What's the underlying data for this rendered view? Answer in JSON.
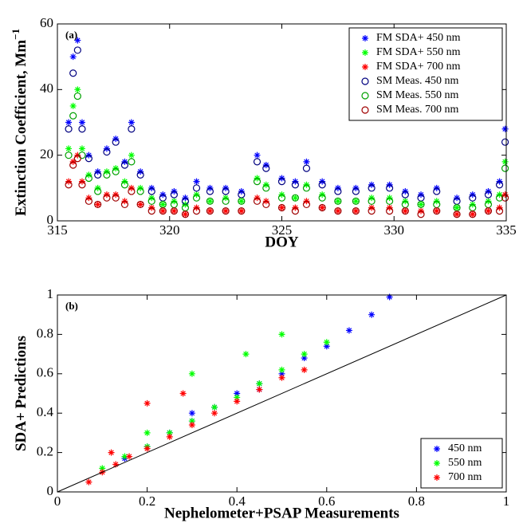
{
  "chart_data": [
    {
      "type": "scatter",
      "annotation": "(a)",
      "xlabel": "DOY",
      "ylabel": "Extinction Coefficient, Mm",
      "ylabel_superscript": "−1",
      "xlim": [
        315,
        335
      ],
      "xticks": [
        315,
        320,
        325,
        330,
        335
      ],
      "ylim": [
        0,
        60
      ],
      "yticks": [
        0,
        20,
        40,
        60
      ],
      "legend": "upper right",
      "x": [
        315.5,
        315.7,
        315.9,
        316.1,
        316.4,
        316.8,
        317.2,
        317.6,
        318.0,
        318.3,
        318.7,
        319.2,
        319.7,
        320.2,
        320.7,
        321.2,
        321.8,
        322.5,
        323.2,
        323.9,
        324.3,
        325.0,
        325.6,
        326.1,
        326.8,
        327.5,
        328.3,
        329.0,
        329.8,
        330.5,
        331.2,
        331.9,
        332.8,
        333.5,
        334.2,
        334.7,
        334.95
      ],
      "series": [
        {
          "name": "FM SDA+ 450 nm",
          "color": "#0000ff",
          "marker": "*",
          "values": [
            30,
            50,
            55,
            30,
            20,
            15,
            22,
            25,
            18,
            30,
            15,
            10,
            8,
            9,
            7,
            12,
            10,
            10,
            9,
            20,
            17,
            13,
            12,
            18,
            12,
            10,
            10,
            11,
            11,
            9,
            8,
            10,
            7,
            8,
            9,
            12,
            28
          ]
        },
        {
          "name": "FM SDA+ 550 nm",
          "color": "#00ff00",
          "marker": "*",
          "values": [
            22,
            35,
            40,
            22,
            14,
            10,
            15,
            16,
            12,
            20,
            10,
            7,
            5,
            6,
            5,
            8,
            6,
            7,
            6,
            13,
            11,
            8,
            7,
            11,
            8,
            6,
            6,
            7,
            7,
            6,
            5,
            6,
            4,
            5,
            6,
            8,
            18
          ]
        },
        {
          "name": "FM SDA+ 700 nm",
          "color": "#ff0000",
          "marker": "*",
          "values": [
            12,
            18,
            20,
            12,
            7,
            5,
            8,
            8,
            6,
            10,
            5,
            4,
            3,
            3,
            2,
            4,
            3,
            3,
            3,
            7,
            6,
            4,
            4,
            6,
            4,
            3,
            3,
            4,
            4,
            3,
            3,
            3,
            2,
            2,
            3,
            4,
            8
          ]
        },
        {
          "name": "SM Meas. 450 nm",
          "color": "#000080",
          "marker": "o",
          "values": [
            28,
            45,
            52,
            28,
            19,
            14,
            21,
            24,
            17,
            28,
            14,
            9,
            7,
            8,
            6,
            10,
            9,
            9,
            8,
            18,
            16,
            12,
            11,
            16,
            11,
            9,
            9,
            10,
            10,
            8,
            7,
            9,
            6,
            7,
            8,
            11,
            24
          ]
        },
        {
          "name": "SM Meas. 550 nm",
          "color": "#00a000",
          "marker": "o",
          "values": [
            20,
            32,
            38,
            20,
            13,
            9,
            14,
            15,
            11,
            18,
            9,
            6,
            5,
            5,
            4,
            7,
            6,
            6,
            6,
            12,
            10,
            7,
            7,
            10,
            7,
            6,
            6,
            6,
            6,
            5,
            5,
            5,
            4,
            4,
            5,
            7,
            16
          ]
        },
        {
          "name": "SM Meas. 700 nm",
          "color": "#a00000",
          "marker": "o",
          "values": [
            11,
            17,
            19,
            11,
            6,
            5,
            7,
            7,
            5,
            9,
            5,
            3,
            3,
            3,
            2,
            3,
            3,
            3,
            3,
            6,
            5,
            4,
            3,
            5,
            4,
            3,
            3,
            3,
            3,
            3,
            2,
            3,
            2,
            2,
            3,
            3,
            7
          ]
        }
      ]
    },
    {
      "type": "scatter",
      "annotation": "(b)",
      "xlabel": "Nephelometer+PSAP Measurements",
      "ylabel": "SDA+ Predictions",
      "xlim": [
        0,
        1
      ],
      "xticks": [
        0,
        0.2,
        0.4,
        0.6,
        0.8,
        1
      ],
      "ylim": [
        0,
        1
      ],
      "yticks": [
        0,
        0.2,
        0.4,
        0.6,
        0.8,
        1
      ],
      "legend": "lower right",
      "series": [
        {
          "name": "450 nm",
          "color": "#0000ff",
          "marker": "*",
          "x": [
            0.15,
            0.2,
            0.25,
            0.3,
            0.35,
            0.4,
            0.45,
            0.5,
            0.55,
            0.6,
            0.65,
            0.7,
            0.74,
            0.3,
            0.45
          ],
          "values": [
            0.17,
            0.23,
            0.3,
            0.36,
            0.43,
            0.5,
            0.55,
            0.6,
            0.68,
            0.74,
            0.82,
            0.9,
            0.99,
            0.4,
            0.52
          ]
        },
        {
          "name": "550 nm",
          "color": "#00ff00",
          "marker": "*",
          "x": [
            0.1,
            0.15,
            0.2,
            0.25,
            0.3,
            0.35,
            0.4,
            0.45,
            0.5,
            0.55,
            0.6,
            0.3,
            0.42,
            0.5,
            0.2
          ],
          "values": [
            0.12,
            0.18,
            0.23,
            0.3,
            0.36,
            0.43,
            0.48,
            0.55,
            0.62,
            0.7,
            0.76,
            0.6,
            0.7,
            0.8,
            0.3
          ]
        },
        {
          "name": "700 nm",
          "color": "#ff0000",
          "marker": "*",
          "x": [
            0.07,
            0.1,
            0.13,
            0.16,
            0.2,
            0.25,
            0.3,
            0.35,
            0.4,
            0.45,
            0.5,
            0.2,
            0.28,
            0.55,
            0.12
          ],
          "values": [
            0.05,
            0.1,
            0.14,
            0.18,
            0.22,
            0.28,
            0.34,
            0.4,
            0.46,
            0.52,
            0.58,
            0.45,
            0.5,
            0.62,
            0.2
          ]
        }
      ]
    }
  ]
}
